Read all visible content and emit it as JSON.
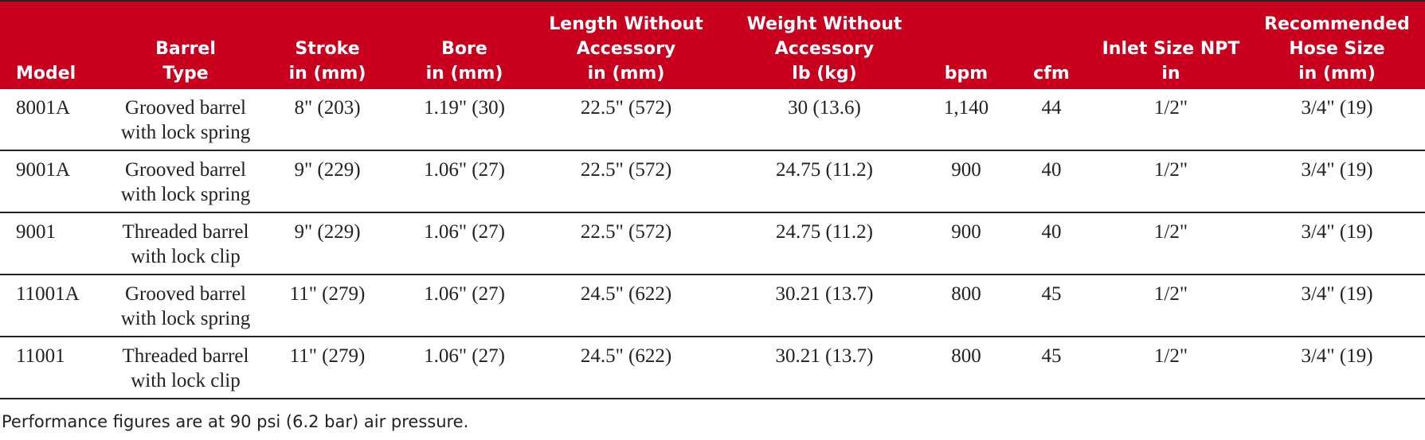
{
  "table": {
    "header": [
      [
        "Model"
      ],
      [
        "Barrel",
        "Type"
      ],
      [
        "Stroke",
        "in (mm)"
      ],
      [
        "Bore",
        "in (mm)"
      ],
      [
        "Length Without",
        "Accessory",
        "in (mm)"
      ],
      [
        "Weight Without",
        "Accessory",
        "lb (kg)"
      ],
      [
        "bpm"
      ],
      [
        "cfm"
      ],
      [
        "Inlet Size NPT",
        "in"
      ],
      [
        "Recommended",
        "Hose Size",
        "in (mm)"
      ]
    ],
    "rows": [
      [
        [
          "8001A"
        ],
        [
          "Grooved barrel",
          "with lock spring"
        ],
        [
          "8\" (203)"
        ],
        [
          "1.19\" (30)"
        ],
        [
          "22.5\" (572)"
        ],
        [
          "30 (13.6)"
        ],
        [
          "1,140"
        ],
        [
          "44"
        ],
        [
          "1/2\""
        ],
        [
          "3/4\" (19)"
        ]
      ],
      [
        [
          "9001A"
        ],
        [
          "Grooved barrel",
          "with lock spring"
        ],
        [
          "9\" (229)"
        ],
        [
          "1.06\" (27)"
        ],
        [
          "22.5\" (572)"
        ],
        [
          "24.75 (11.2)"
        ],
        [
          "900"
        ],
        [
          "40"
        ],
        [
          "1/2\""
        ],
        [
          "3/4\" (19)"
        ]
      ],
      [
        [
          "9001"
        ],
        [
          "Threaded barrel",
          "with lock clip"
        ],
        [
          "9\" (229)"
        ],
        [
          "1.06\" (27)"
        ],
        [
          "22.5\" (572)"
        ],
        [
          "24.75 (11.2)"
        ],
        [
          "900"
        ],
        [
          "40"
        ],
        [
          "1/2\""
        ],
        [
          "3/4\" (19)"
        ]
      ],
      [
        [
          "11001A"
        ],
        [
          "Grooved barrel",
          "with lock spring"
        ],
        [
          "11\" (279)"
        ],
        [
          "1.06\" (27)"
        ],
        [
          "24.5\" (622)"
        ],
        [
          "30.21 (13.7)"
        ],
        [
          "800"
        ],
        [
          "45"
        ],
        [
          "1/2\""
        ],
        [
          "3/4\" (19)"
        ]
      ],
      [
        [
          "11001"
        ],
        [
          "Threaded barrel",
          "with lock clip"
        ],
        [
          "11\" (279)"
        ],
        [
          "1.06\" (27)"
        ],
        [
          "24.5\" (622)"
        ],
        [
          "30.21 (13.7)"
        ],
        [
          "800"
        ],
        [
          "45"
        ],
        [
          "1/2\""
        ],
        [
          "3/4\" (19)"
        ]
      ]
    ]
  },
  "footnote": "Performance figures are at 90 psi (6.2 bar) air pressure."
}
